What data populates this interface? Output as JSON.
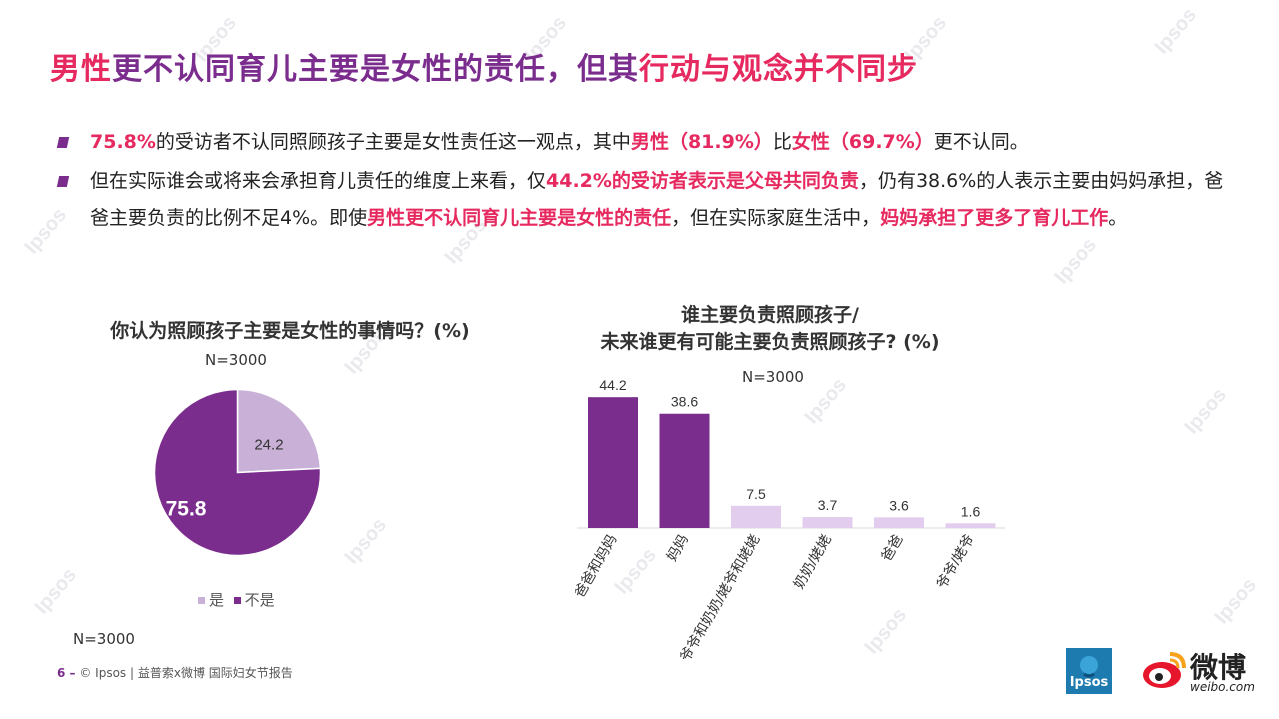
{
  "header": {
    "title_part1": "男性",
    "title_part2": "更不认同育儿主要是女性的责任，但其",
    "title_part3": "行动与观念并不同步"
  },
  "bullets": [
    {
      "segments": [
        {
          "text": "75.8%",
          "hl": true
        },
        {
          "text": "的受访者不认同照顾孩子主要是女性责任这一观点，其中",
          "hl": false
        },
        {
          "text": "男性（81.9%）",
          "hl": true
        },
        {
          "text": "比",
          "hl": false
        },
        {
          "text": "女性（69.7%）",
          "hl": true
        },
        {
          "text": "更不认同。",
          "hl": false
        }
      ]
    },
    {
      "segments": [
        {
          "text": "但在实际谁会或将来会承担育儿责任的维度上来看，仅",
          "hl": false
        },
        {
          "text": "44.2%的受访者表示是父母共同负责",
          "hl": true
        },
        {
          "text": "，仍有38.6%的人表示主要由妈妈承担，爸爸主要负责的比例不足4%。即使",
          "hl": false
        },
        {
          "text": "男性更不认同育儿主要是女性的责任",
          "hl": true
        },
        {
          "text": "，但在实际家庭生活中，",
          "hl": false
        },
        {
          "text": "妈妈承担了更多了育儿工作",
          "hl": true
        },
        {
          "text": "。",
          "hl": false
        }
      ]
    }
  ],
  "chart_data": [
    {
      "type": "pie",
      "title": "你认为照顾孩子主要是女性的事情吗？(%)",
      "sample": "N=3000",
      "categories": [
        "是",
        "不是"
      ],
      "values": [
        24.2,
        75.8
      ],
      "colors": [
        "#c8b0d6",
        "#7b2d8e"
      ],
      "legend_position": "bottom",
      "footnote": "N=3000"
    },
    {
      "type": "bar",
      "title_line1": "谁主要负责照顾孩子/",
      "title_line2": "未来谁更有可能主要负责照顾孩子? (%)",
      "sample": "N=3000",
      "categories": [
        "爸爸和妈妈",
        "妈妈",
        "爷爷和奶奶/姥爷和姥姥",
        "奶奶/姥姥",
        "爸爸",
        "爷爷/姥爷"
      ],
      "values": [
        44.2,
        38.6,
        7.5,
        3.7,
        3.6,
        1.6
      ],
      "colors": [
        "#7b2d8e",
        "#7b2d8e",
        "#e2cdee",
        "#e2cdee",
        "#e2cdee",
        "#e2cdee"
      ],
      "ylim": [
        0,
        50
      ],
      "grid": false
    }
  ],
  "footer": {
    "page": "6 –",
    "text": "© Ipsos | 益普索x微博 国际妇女节报告"
  },
  "logos": {
    "ipsos": "Ipsos",
    "weibo_cn": "微博",
    "weibo_en": "weibo.com"
  }
}
